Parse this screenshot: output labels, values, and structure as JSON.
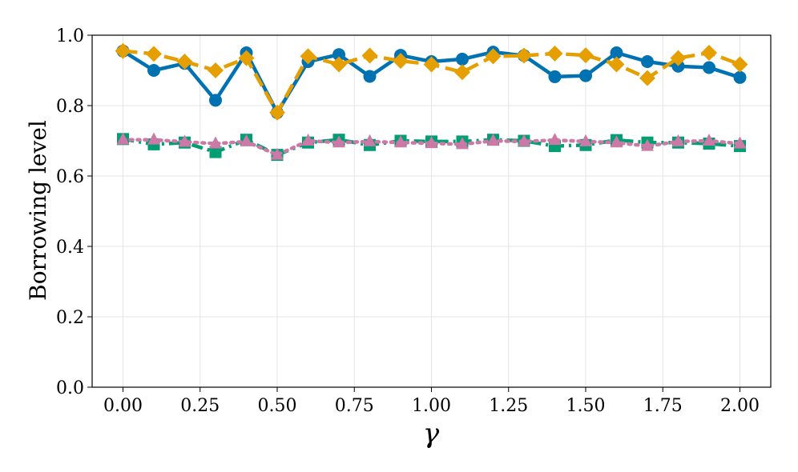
{
  "chart_data": {
    "type": "line",
    "title": "",
    "xlabel": "γ",
    "ylabel": "Borrowing level",
    "xlim": [
      -0.1,
      2.1
    ],
    "ylim": [
      0.0,
      1.0
    ],
    "xticks": [
      0.0,
      0.25,
      0.5,
      0.75,
      1.0,
      1.25,
      1.5,
      1.75,
      2.0
    ],
    "xtick_labels": [
      "0.00",
      "0.25",
      "0.50",
      "0.75",
      "1.00",
      "1.25",
      "1.50",
      "1.75",
      "2.00"
    ],
    "yticks": [
      0.0,
      0.2,
      0.4,
      0.6,
      0.8,
      1.0
    ],
    "ytick_labels": [
      "0.0",
      "0.2",
      "0.4",
      "0.6",
      "0.8",
      "1.0"
    ],
    "grid": true,
    "legend": false,
    "x": [
      0.0,
      0.1,
      0.2,
      0.3,
      0.4,
      0.5,
      0.6,
      0.7,
      0.8,
      0.9,
      1.0,
      1.1,
      1.2,
      1.3,
      1.4,
      1.5,
      1.6,
      1.7,
      1.8,
      1.9,
      2.0
    ],
    "series": [
      {
        "color": "#0072B2",
        "linestyle": "solid",
        "marker": "circle",
        "values": [
          0.955,
          0.9,
          0.92,
          0.815,
          0.95,
          0.78,
          0.925,
          0.945,
          0.883,
          0.943,
          0.925,
          0.932,
          0.952,
          0.942,
          0.882,
          0.885,
          0.95,
          0.925,
          0.912,
          0.908,
          0.88
        ]
      },
      {
        "color": "#E69F00",
        "linestyle": "dashed",
        "marker": "diamond",
        "values": [
          0.955,
          0.947,
          0.925,
          0.9,
          0.935,
          0.78,
          0.94,
          0.917,
          0.942,
          0.927,
          0.917,
          0.895,
          0.94,
          0.942,
          0.948,
          0.943,
          0.917,
          0.878,
          0.935,
          0.95,
          0.917
        ]
      },
      {
        "color": "#009E73",
        "linestyle": "dashdot",
        "marker": "square",
        "values": [
          0.705,
          0.69,
          0.695,
          0.668,
          0.703,
          0.66,
          0.695,
          0.703,
          0.688,
          0.7,
          0.698,
          0.698,
          0.703,
          0.7,
          0.685,
          0.688,
          0.702,
          0.695,
          0.695,
          0.692,
          0.685
        ]
      },
      {
        "color": "#CC79A7",
        "linestyle": "dotted",
        "marker": "triangle",
        "values": [
          0.703,
          0.703,
          0.697,
          0.692,
          0.698,
          0.66,
          0.7,
          0.695,
          0.698,
          0.695,
          0.693,
          0.69,
          0.7,
          0.698,
          0.702,
          0.698,
          0.695,
          0.685,
          0.698,
          0.7,
          0.692
        ]
      }
    ]
  }
}
